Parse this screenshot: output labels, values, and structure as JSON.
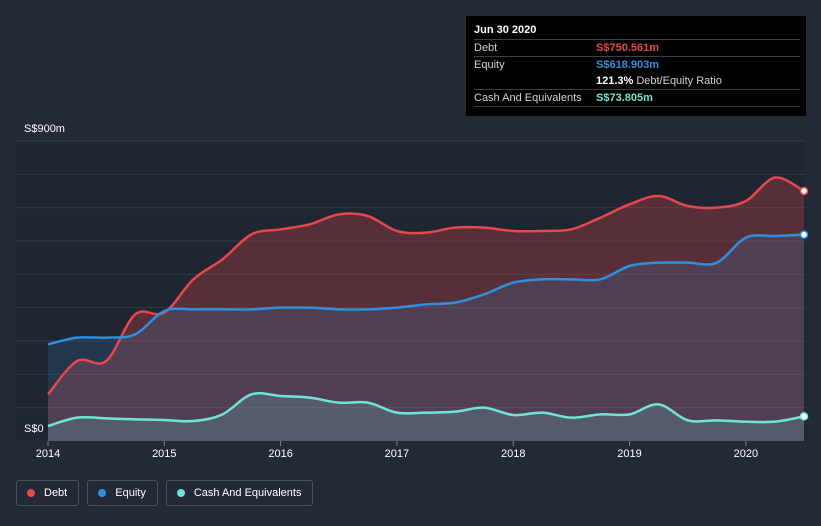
{
  "tooltip": {
    "date": "Jun 30 2020",
    "debt_label": "Debt",
    "debt_value": "S$750.561m",
    "equity_label": "Equity",
    "equity_value": "S$618.903m",
    "ratio_value": "121.3%",
    "ratio_label": "Debt/Equity Ratio",
    "cash_label": "Cash And Equivalents",
    "cash_value": "S$73.805m"
  },
  "legend": {
    "debt": "Debt",
    "equity": "Equity",
    "cash": "Cash And Equivalents"
  },
  "colors": {
    "background": "#232a36",
    "debt": "#e5484d",
    "equity": "#2f8fdd",
    "cash": "#6ee5d3"
  },
  "chart_data": {
    "type": "area",
    "ylabel_top": "S$900m",
    "ylabel_bottom": "S$0",
    "ylim": [
      0,
      900
    ],
    "xlim": [
      2014.0,
      2020.5
    ],
    "x_ticks": [
      "2014",
      "2015",
      "2016",
      "2017",
      "2018",
      "2019",
      "2020"
    ],
    "x": [
      2014.0,
      2014.25,
      2014.5,
      2014.75,
      2015.0,
      2015.25,
      2015.5,
      2015.75,
      2016.0,
      2016.25,
      2016.5,
      2016.75,
      2017.0,
      2017.25,
      2017.5,
      2017.75,
      2018.0,
      2018.25,
      2018.5,
      2018.75,
      2019.0,
      2019.25,
      2019.5,
      2019.75,
      2020.0,
      2020.25,
      2020.5
    ],
    "series": [
      {
        "name": "Debt",
        "values": [
          140,
          240,
          240,
          380,
          385,
          485,
          545,
          620,
          635,
          650,
          680,
          675,
          630,
          625,
          640,
          640,
          630,
          630,
          635,
          670,
          710,
          735,
          705,
          700,
          720,
          790,
          750
        ]
      },
      {
        "name": "Equity",
        "values": [
          290,
          310,
          310,
          320,
          390,
          395,
          395,
          395,
          400,
          400,
          395,
          395,
          400,
          410,
          415,
          440,
          475,
          485,
          485,
          485,
          525,
          535,
          535,
          535,
          610,
          615,
          619
        ]
      },
      {
        "name": "Cash And Equivalents",
        "values": [
          45,
          70,
          68,
          65,
          63,
          60,
          80,
          140,
          135,
          130,
          115,
          115,
          85,
          85,
          88,
          100,
          78,
          85,
          70,
          80,
          80,
          110,
          62,
          62,
          58,
          58,
          74
        ]
      }
    ]
  }
}
